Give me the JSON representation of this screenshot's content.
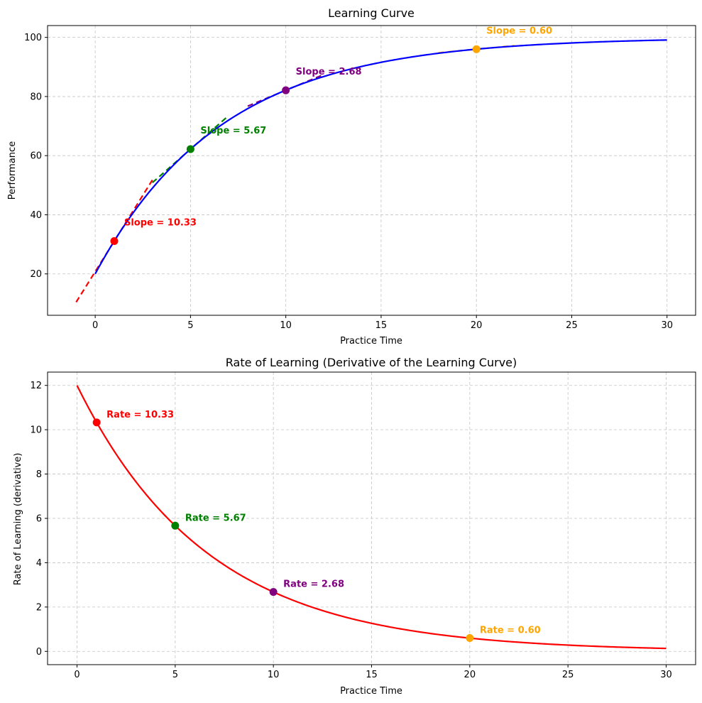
{
  "chart_data": [
    {
      "type": "line",
      "title": "Learning Curve",
      "xlabel": "Practice Time",
      "ylabel": "Performance",
      "xlim": [
        -2.5,
        31.5
      ],
      "ylim": [
        6,
        104
      ],
      "xticks": [
        0,
        5,
        10,
        15,
        20,
        25,
        30
      ],
      "yticks": [
        20,
        40,
        60,
        80,
        100
      ],
      "grid": true,
      "curve": {
        "formula": "100 - 80*exp(-0.15*t)",
        "x_range": [
          0,
          30
        ],
        "color": "#0000ff",
        "key_points": [
          [
            0,
            20
          ],
          [
            5,
            62.2
          ],
          [
            10,
            82.1
          ],
          [
            15,
            91.6
          ],
          [
            20,
            96.0
          ],
          [
            25,
            98.1
          ],
          [
            30,
            99.1
          ]
        ]
      },
      "points": [
        {
          "x": 1,
          "y": 31.1,
          "color": "#ff0000",
          "label": "Slope = 10.33",
          "slope": 10.33
        },
        {
          "x": 5,
          "y": 62.2,
          "color": "#008000",
          "label": "Slope = 5.67",
          "slope": 5.67
        },
        {
          "x": 10,
          "y": 82.1,
          "color": "#800080",
          "label": "Slope = 2.68",
          "slope": 2.68
        },
        {
          "x": 20,
          "y": 96.0,
          "color": "#ffa500",
          "label": "Slope = 0.60",
          "slope": 0.6
        }
      ],
      "tangent_half_width": 2
    },
    {
      "type": "line",
      "title": "Rate of Learning (Derivative of the Learning Curve)",
      "xlabel": "Practice Time",
      "ylabel": "Rate of Learning (derivative)",
      "xlim": [
        -1.5,
        31.5
      ],
      "ylim": [
        -0.6,
        12.6
      ],
      "xticks": [
        0,
        5,
        10,
        15,
        20,
        25,
        30
      ],
      "yticks": [
        0,
        2,
        4,
        6,
        8,
        10,
        12
      ],
      "grid": true,
      "curve": {
        "formula": "12*exp(-0.15*t)",
        "x_range": [
          0,
          30
        ],
        "color": "#ff0000",
        "key_points": [
          [
            0,
            12
          ],
          [
            5,
            5.67
          ],
          [
            10,
            2.68
          ],
          [
            15,
            1.27
          ],
          [
            20,
            0.6
          ],
          [
            25,
            0.28
          ],
          [
            30,
            0.13
          ]
        ]
      },
      "points": [
        {
          "x": 1,
          "y": 10.33,
          "color": "#ff0000",
          "label": "Rate = 10.33"
        },
        {
          "x": 5,
          "y": 5.67,
          "color": "#008000",
          "label": "Rate = 5.67"
        },
        {
          "x": 10,
          "y": 2.68,
          "color": "#800080",
          "label": "Rate = 2.68"
        },
        {
          "x": 20,
          "y": 0.6,
          "color": "#ffa500",
          "label": "Rate = 0.60"
        }
      ]
    }
  ]
}
